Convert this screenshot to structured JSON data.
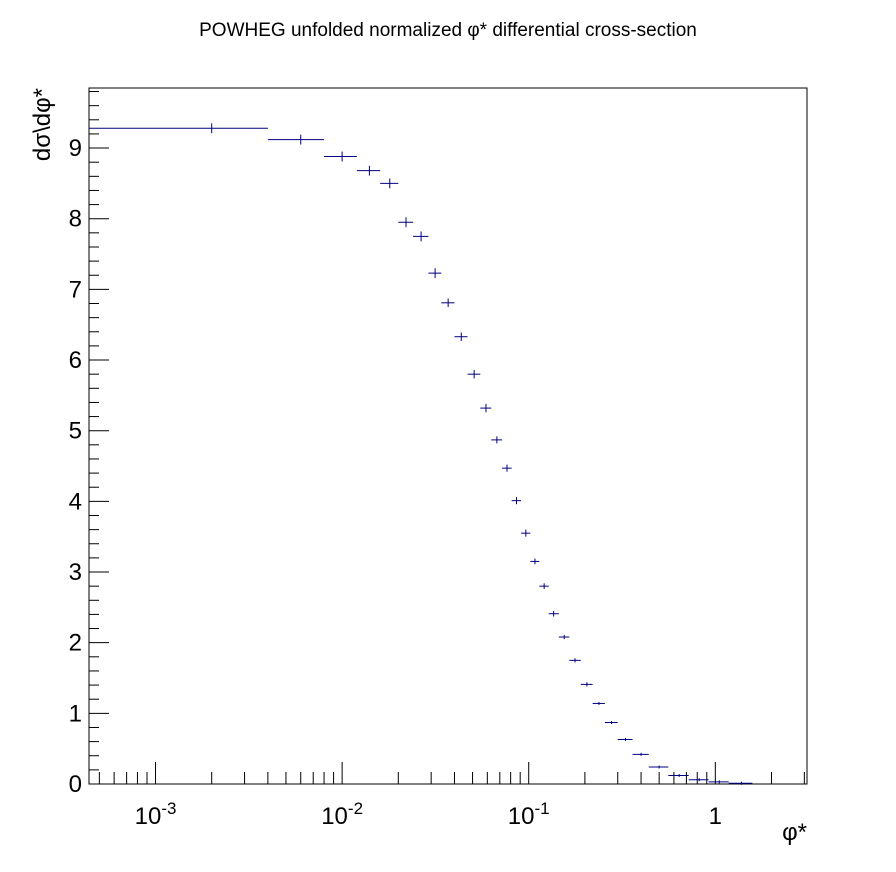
{
  "chart_data": {
    "type": "scatter",
    "title": "POWHEG unfolded normalized φ* differential cross-section",
    "xlabel": "φ*",
    "ylabel": "dσ\\dφ*",
    "xscale": "log",
    "xlim": [
      0.00044,
      3.1
    ],
    "ylim": [
      0,
      9.85
    ],
    "grid": false,
    "legend": "none",
    "series_color": "#000080",
    "xticks": [
      {
        "base": "10",
        "exp": "-3",
        "value": 0.001
      },
      {
        "base": "10",
        "exp": "-2",
        "value": 0.01
      },
      {
        "base": "10",
        "exp": "-1",
        "value": 0.1
      },
      {
        "base": "1",
        "exp": "",
        "value": 1
      }
    ],
    "yticks": [
      "0",
      "1",
      "2",
      "3",
      "4",
      "5",
      "6",
      "7",
      "8",
      "9"
    ],
    "points": [
      {
        "x": 0.002,
        "xlo": 0.0,
        "xhi": 0.004,
        "y": 9.28,
        "err": 0.07
      },
      {
        "x": 0.006,
        "xlo": 0.004,
        "xhi": 0.008,
        "y": 9.12,
        "err": 0.07
      },
      {
        "x": 0.01,
        "xlo": 0.008,
        "xhi": 0.012,
        "y": 8.88,
        "err": 0.07
      },
      {
        "x": 0.014,
        "xlo": 0.012,
        "xhi": 0.016,
        "y": 8.68,
        "err": 0.07
      },
      {
        "x": 0.018,
        "xlo": 0.016,
        "xhi": 0.02,
        "y": 8.5,
        "err": 0.07
      },
      {
        "x": 0.022,
        "xlo": 0.02,
        "xhi": 0.024,
        "y": 7.95,
        "err": 0.07
      },
      {
        "x": 0.0265,
        "xlo": 0.024,
        "xhi": 0.029,
        "y": 7.75,
        "err": 0.07
      },
      {
        "x": 0.0315,
        "xlo": 0.029,
        "xhi": 0.034,
        "y": 7.23,
        "err": 0.07
      },
      {
        "x": 0.037,
        "xlo": 0.034,
        "xhi": 0.04,
        "y": 6.81,
        "err": 0.06
      },
      {
        "x": 0.0435,
        "xlo": 0.04,
        "xhi": 0.047,
        "y": 6.33,
        "err": 0.06
      },
      {
        "x": 0.051,
        "xlo": 0.047,
        "xhi": 0.055,
        "y": 5.8,
        "err": 0.06
      },
      {
        "x": 0.059,
        "xlo": 0.055,
        "xhi": 0.063,
        "y": 5.32,
        "err": 0.06
      },
      {
        "x": 0.0675,
        "xlo": 0.063,
        "xhi": 0.072,
        "y": 4.87,
        "err": 0.05
      },
      {
        "x": 0.0765,
        "xlo": 0.072,
        "xhi": 0.081,
        "y": 4.47,
        "err": 0.05
      },
      {
        "x": 0.086,
        "xlo": 0.081,
        "xhi": 0.091,
        "y": 4.01,
        "err": 0.05
      },
      {
        "x": 0.0965,
        "xlo": 0.091,
        "xhi": 0.102,
        "y": 3.55,
        "err": 0.05
      },
      {
        "x": 0.108,
        "xlo": 0.102,
        "xhi": 0.114,
        "y": 3.15,
        "err": 0.04
      },
      {
        "x": 0.121,
        "xlo": 0.114,
        "xhi": 0.128,
        "y": 2.8,
        "err": 0.04
      },
      {
        "x": 0.136,
        "xlo": 0.128,
        "xhi": 0.145,
        "y": 2.41,
        "err": 0.04
      },
      {
        "x": 0.155,
        "xlo": 0.145,
        "xhi": 0.165,
        "y": 2.08,
        "err": 0.03
      },
      {
        "x": 0.177,
        "xlo": 0.165,
        "xhi": 0.19,
        "y": 1.75,
        "err": 0.03
      },
      {
        "x": 0.205,
        "xlo": 0.19,
        "xhi": 0.22,
        "y": 1.41,
        "err": 0.03
      },
      {
        "x": 0.238,
        "xlo": 0.22,
        "xhi": 0.256,
        "y": 1.14,
        "err": 0.02
      },
      {
        "x": 0.278,
        "xlo": 0.256,
        "xhi": 0.3,
        "y": 0.87,
        "err": 0.02
      },
      {
        "x": 0.33,
        "xlo": 0.3,
        "xhi": 0.36,
        "y": 0.63,
        "err": 0.02
      },
      {
        "x": 0.4,
        "xlo": 0.36,
        "xhi": 0.44,
        "y": 0.42,
        "err": 0.015
      },
      {
        "x": 0.5,
        "xlo": 0.44,
        "xhi": 0.56,
        "y": 0.24,
        "err": 0.01
      },
      {
        "x": 0.64,
        "xlo": 0.56,
        "xhi": 0.72,
        "y": 0.12,
        "err": 0.01
      },
      {
        "x": 0.82,
        "xlo": 0.72,
        "xhi": 0.92,
        "y": 0.06,
        "err": 0.005
      },
      {
        "x": 1.05,
        "xlo": 0.92,
        "xhi": 1.18,
        "y": 0.03,
        "err": 0.005
      },
      {
        "x": 1.38,
        "xlo": 1.18,
        "xhi": 1.58,
        "y": 0.01,
        "err": 0.003
      }
    ]
  }
}
